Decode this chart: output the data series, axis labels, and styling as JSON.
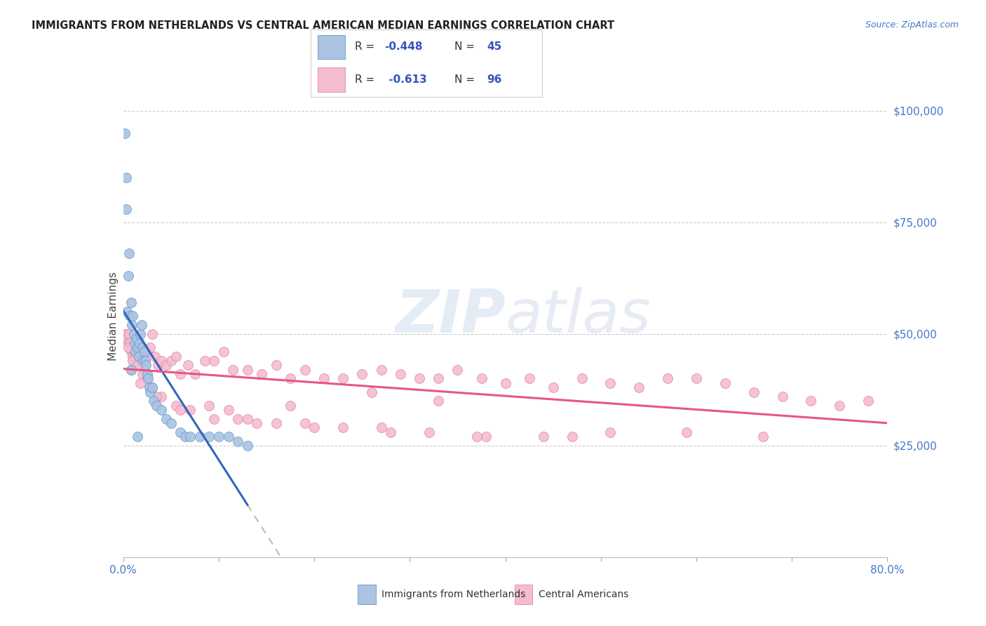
{
  "title": "IMMIGRANTS FROM NETHERLANDS VS CENTRAL AMERICAN MEDIAN EARNINGS CORRELATION CHART",
  "source": "Source: ZipAtlas.com",
  "ylabel": "Median Earnings",
  "xmin": 0.0,
  "xmax": 0.8,
  "ymin": 0,
  "ymax": 108000,
  "y_ticks": [
    0,
    25000,
    50000,
    75000,
    100000
  ],
  "y_tick_labels": [
    "",
    "$25,000",
    "$50,000",
    "$75,000",
    "$100,000"
  ],
  "blue_scatter_color": "#aac4e2",
  "blue_scatter_edge": "#6699cc",
  "blue_line_color": "#3366bb",
  "pink_scatter_color": "#f5bcd0",
  "pink_scatter_edge": "#dd88aa",
  "pink_line_color": "#e85588",
  "dashed_color": "#bbbbbb",
  "watermark_color": "#ccd9ee",
  "nl_x": [
    0.002,
    0.003,
    0.004,
    0.005,
    0.006,
    0.007,
    0.008,
    0.009,
    0.01,
    0.011,
    0.012,
    0.013,
    0.014,
    0.015,
    0.016,
    0.017,
    0.018,
    0.019,
    0.02,
    0.021,
    0.022,
    0.023,
    0.024,
    0.025,
    0.026,
    0.027,
    0.028,
    0.03,
    0.032,
    0.035,
    0.04,
    0.045,
    0.05,
    0.06,
    0.065,
    0.07,
    0.08,
    0.09,
    0.1,
    0.11,
    0.12,
    0.13,
    0.003,
    0.008,
    0.015
  ],
  "nl_y": [
    95000,
    85000,
    55000,
    63000,
    68000,
    54000,
    57000,
    52000,
    54000,
    50000,
    48000,
    46000,
    49000,
    47000,
    45000,
    48000,
    50000,
    52000,
    47000,
    44000,
    46000,
    44000,
    43000,
    41000,
    40000,
    38000,
    37000,
    38000,
    35000,
    34000,
    33000,
    31000,
    30000,
    28000,
    27000,
    27000,
    27000,
    27000,
    27000,
    27000,
    26000,
    25000,
    78000,
    42000,
    27000
  ],
  "ca_x": [
    0.002,
    0.003,
    0.004,
    0.005,
    0.006,
    0.007,
    0.008,
    0.009,
    0.01,
    0.011,
    0.012,
    0.013,
    0.015,
    0.017,
    0.02,
    0.022,
    0.025,
    0.028,
    0.03,
    0.033,
    0.036,
    0.04,
    0.045,
    0.05,
    0.055,
    0.06,
    0.068,
    0.075,
    0.085,
    0.095,
    0.105,
    0.115,
    0.13,
    0.145,
    0.16,
    0.175,
    0.19,
    0.21,
    0.23,
    0.25,
    0.27,
    0.29,
    0.31,
    0.33,
    0.35,
    0.375,
    0.4,
    0.425,
    0.45,
    0.48,
    0.51,
    0.54,
    0.57,
    0.6,
    0.63,
    0.66,
    0.69,
    0.72,
    0.75,
    0.78,
    0.005,
    0.01,
    0.015,
    0.02,
    0.025,
    0.03,
    0.04,
    0.055,
    0.07,
    0.09,
    0.11,
    0.13,
    0.16,
    0.19,
    0.23,
    0.27,
    0.32,
    0.38,
    0.44,
    0.51,
    0.59,
    0.67,
    0.008,
    0.018,
    0.035,
    0.06,
    0.095,
    0.14,
    0.2,
    0.28,
    0.37,
    0.47,
    0.33,
    0.26,
    0.175,
    0.12
  ],
  "ca_y": [
    50000,
    50000,
    49000,
    48000,
    50000,
    48000,
    46000,
    47000,
    45000,
    47000,
    46000,
    44000,
    45000,
    43000,
    44000,
    42000,
    46000,
    47000,
    50000,
    45000,
    43000,
    44000,
    43000,
    44000,
    45000,
    41000,
    43000,
    41000,
    44000,
    44000,
    46000,
    42000,
    42000,
    41000,
    43000,
    40000,
    42000,
    40000,
    40000,
    41000,
    42000,
    41000,
    40000,
    40000,
    42000,
    40000,
    39000,
    40000,
    38000,
    40000,
    39000,
    38000,
    40000,
    40000,
    39000,
    37000,
    36000,
    35000,
    34000,
    35000,
    47000,
    44000,
    43000,
    41000,
    40000,
    38000,
    36000,
    34000,
    33000,
    34000,
    33000,
    31000,
    30000,
    30000,
    29000,
    29000,
    28000,
    27000,
    27000,
    28000,
    28000,
    27000,
    42000,
    39000,
    36000,
    33000,
    31000,
    30000,
    29000,
    28000,
    27000,
    27000,
    35000,
    37000,
    34000,
    31000
  ]
}
